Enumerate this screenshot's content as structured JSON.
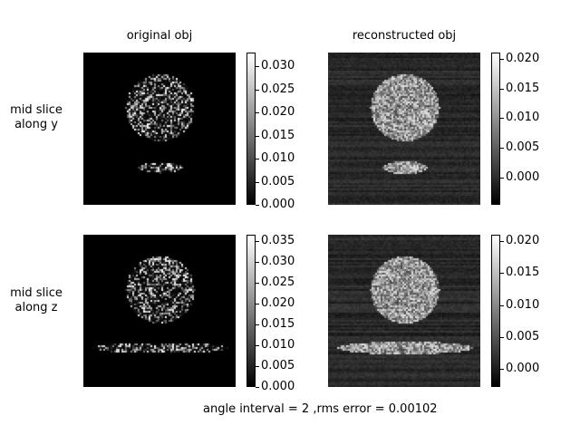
{
  "column_titles": {
    "left": "original obj",
    "right": "reconstructed obj"
  },
  "row_labels": {
    "top": "mid slice\nalong y",
    "bottom": "mid slice\nalong z"
  },
  "colorbars": {
    "top_left": {
      "min": 0.0,
      "max": 0.033,
      "ticks": [
        "0.000",
        "0.005",
        "0.010",
        "0.015",
        "0.020",
        "0.025",
        "0.030"
      ]
    },
    "top_right": {
      "min": -0.0045,
      "max": 0.021,
      "ticks": [
        "0.000",
        "0.005",
        "0.010",
        "0.015",
        "0.020"
      ]
    },
    "bottom_left": {
      "min": 0.0,
      "max": 0.0365,
      "ticks": [
        "0.000",
        "0.005",
        "0.010",
        "0.015",
        "0.020",
        "0.025",
        "0.030",
        "0.035"
      ]
    },
    "bottom_right": {
      "min": -0.0028,
      "max": 0.021,
      "ticks": [
        "0.000",
        "0.005",
        "0.010",
        "0.015",
        "0.020"
      ]
    }
  },
  "footer": "angle interval = 2 ,rms error = 0.00102",
  "colormap": "gray"
}
